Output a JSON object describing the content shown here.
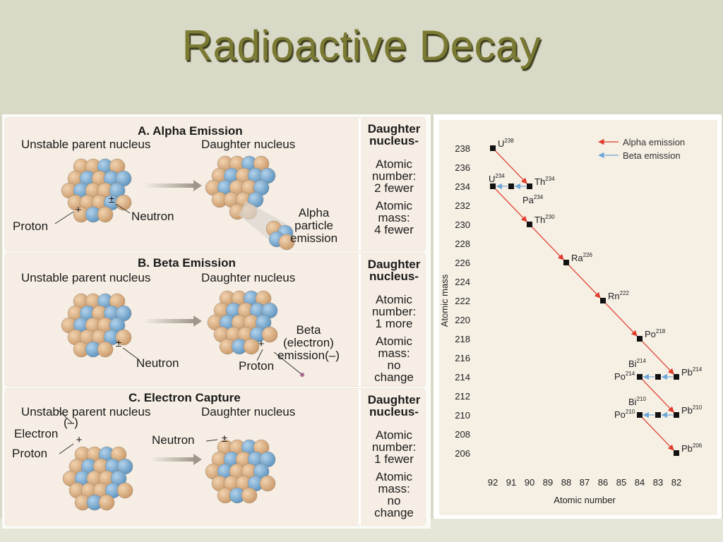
{
  "slide": {
    "title": "Radioactive Decay"
  },
  "sections": [
    {
      "heading": "A. Alpha Emission",
      "parent_label": "Unstable parent nucleus",
      "daughter_label": "Daughter nucleus",
      "proton_label": "Proton",
      "neutron_label": "Neutron",
      "extra_label": [
        "Alpha",
        "particle",
        "emission"
      ],
      "side_title": [
        "Daughter",
        "nucleus-"
      ],
      "side_number": [
        "Atomic",
        "number:",
        "2 fewer"
      ],
      "side_mass": [
        "Atomic",
        "mass:",
        "4 fewer"
      ]
    },
    {
      "heading": "B. Beta Emission",
      "parent_label": "Unstable parent nucleus",
      "daughter_label": "Daughter nucleus",
      "neutron_label": "Neutron",
      "proton_label": "Proton",
      "extra_label": [
        "Beta",
        "(electron)",
        "emission(–)"
      ],
      "side_title": [
        "Daughter",
        "nucleus-"
      ],
      "side_number": [
        "Atomic",
        "number:",
        "1 more"
      ],
      "side_mass": [
        "Atomic",
        "mass:",
        "no",
        "change"
      ]
    },
    {
      "heading": "C. Electron Capture",
      "parent_label": "Unstable parent nucleus",
      "daughter_label": "Daughter nucleus",
      "electron_label": "Electron",
      "electron_sign": "(–)",
      "proton_label": "Proton",
      "neutron_label": "Neutron",
      "side_title": [
        "Daughter",
        "nucleus-"
      ],
      "side_number": [
        "Atomic",
        "number:",
        "1 fewer"
      ],
      "side_mass": [
        "Atomic",
        "mass:",
        "no",
        "change"
      ]
    }
  ],
  "chart_data": {
    "type": "scatter",
    "xlabel": "Atomic number",
    "ylabel": "Atomic mass",
    "x_ticks": [
      92,
      91,
      90,
      89,
      88,
      87,
      86,
      85,
      84,
      83,
      82
    ],
    "y_ticks": [
      238,
      236,
      234,
      232,
      230,
      228,
      226,
      224,
      222,
      220,
      218,
      216,
      214,
      212,
      210,
      208,
      206
    ],
    "xlim": [
      92,
      82
    ],
    "ylim": [
      206,
      238
    ],
    "legend": {
      "placement": "top-right",
      "items": [
        {
          "label": "Alpha emission",
          "color": "#e03a2a"
        },
        {
          "label": "Beta emission",
          "color": "#6ea8d8"
        }
      ]
    },
    "points": [
      {
        "x": 92,
        "y": 238,
        "sym": "U",
        "mass": "238",
        "pos": "right"
      },
      {
        "x": 90,
        "y": 234,
        "sym": "Th",
        "mass": "234",
        "pos": "right"
      },
      {
        "x": 91,
        "y": 234,
        "sym": "Pa",
        "mass": "234",
        "pos": "below"
      },
      {
        "x": 92,
        "y": 234,
        "sym": "U",
        "mass": "234",
        "pos": "above"
      },
      {
        "x": 90,
        "y": 230,
        "sym": "Th",
        "mass": "230",
        "pos": "right"
      },
      {
        "x": 88,
        "y": 226,
        "sym": "Ra",
        "mass": "226",
        "pos": "right"
      },
      {
        "x": 86,
        "y": 222,
        "sym": "Rn",
        "mass": "222",
        "pos": "right"
      },
      {
        "x": 84,
        "y": 218,
        "sym": "Po",
        "mass": "218",
        "pos": "right"
      },
      {
        "x": 82,
        "y": 214,
        "sym": "Pb",
        "mass": "214",
        "pos": "right"
      },
      {
        "x": 83,
        "y": 214,
        "sym": "Bi",
        "mass": "214",
        "pos": "aboveleft"
      },
      {
        "x": 84,
        "y": 214,
        "sym": "Po",
        "mass": "214",
        "pos": "left"
      },
      {
        "x": 82,
        "y": 210,
        "sym": "Pb",
        "mass": "210",
        "pos": "right"
      },
      {
        "x": 83,
        "y": 210,
        "sym": "Bi",
        "mass": "210",
        "pos": "aboveleft"
      },
      {
        "x": 84,
        "y": 210,
        "sym": "Po",
        "mass": "210",
        "pos": "left"
      },
      {
        "x": 82,
        "y": 206,
        "sym": "Pb",
        "mass": "206",
        "pos": "right"
      }
    ],
    "transitions": [
      {
        "from": [
          92,
          238
        ],
        "to": [
          90,
          234
        ],
        "kind": "alpha"
      },
      {
        "from": [
          90,
          234
        ],
        "to": [
          91,
          234
        ],
        "kind": "beta"
      },
      {
        "from": [
          91,
          234
        ],
        "to": [
          92,
          234
        ],
        "kind": "beta"
      },
      {
        "from": [
          92,
          234
        ],
        "to": [
          90,
          230
        ],
        "kind": "alpha"
      },
      {
        "from": [
          90,
          230
        ],
        "to": [
          88,
          226
        ],
        "kind": "alpha"
      },
      {
        "from": [
          88,
          226
        ],
        "to": [
          86,
          222
        ],
        "kind": "alpha"
      },
      {
        "from": [
          86,
          222
        ],
        "to": [
          84,
          218
        ],
        "kind": "alpha"
      },
      {
        "from": [
          84,
          218
        ],
        "to": [
          82,
          214
        ],
        "kind": "alpha"
      },
      {
        "from": [
          82,
          214
        ],
        "to": [
          83,
          214
        ],
        "kind": "beta"
      },
      {
        "from": [
          83,
          214
        ],
        "to": [
          84,
          214
        ],
        "kind": "beta"
      },
      {
        "from": [
          84,
          214
        ],
        "to": [
          82,
          210
        ],
        "kind": "alpha"
      },
      {
        "from": [
          82,
          210
        ],
        "to": [
          83,
          210
        ],
        "kind": "beta"
      },
      {
        "from": [
          83,
          210
        ],
        "to": [
          84,
          210
        ],
        "kind": "beta"
      },
      {
        "from": [
          84,
          210
        ],
        "to": [
          82,
          206
        ],
        "kind": "alpha"
      }
    ]
  },
  "colors": {
    "proton": "#c99868",
    "neutron": "#5b93bf",
    "alpha": "#e03a2a",
    "beta": "#6ea8d8",
    "title": "#7b7a33"
  }
}
